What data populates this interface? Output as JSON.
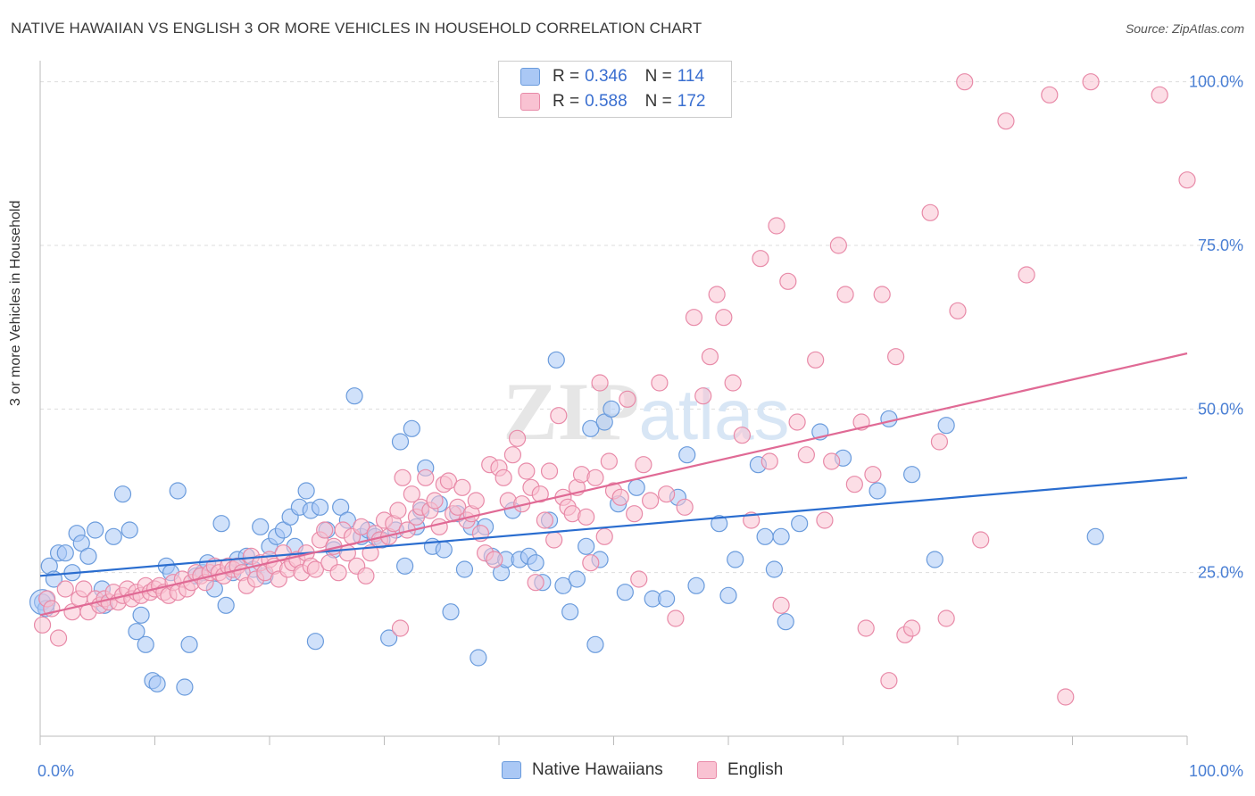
{
  "header": {
    "title": "NATIVE HAWAIIAN VS ENGLISH 3 OR MORE VEHICLES IN HOUSEHOLD CORRELATION CHART",
    "source": "Source: ZipAtlas.com"
  },
  "legend": {
    "items": [
      {
        "r_label": "R =",
        "r_value": "0.346",
        "n_label": "N =",
        "n_value": "114",
        "color": "#aac8f5",
        "border": "#6a9bdc"
      },
      {
        "r_label": "R =",
        "r_value": "0.588",
        "n_label": "N =",
        "n_value": "172",
        "color": "#f9c2d2",
        "border": "#e88aa8"
      }
    ]
  },
  "bottom_legend": {
    "items": [
      {
        "label": "Native Hawaiians",
        "color": "#aac8f5",
        "border": "#6a9bdc"
      },
      {
        "label": "English",
        "color": "#f9c2d2",
        "border": "#e88aa8"
      }
    ]
  },
  "chart_data": {
    "type": "scatter",
    "title": "NATIVE HAWAIIAN VS ENGLISH 3 OR MORE VEHICLES IN HOUSEHOLD CORRELATION CHART",
    "xlabel": "",
    "ylabel": "3 or more Vehicles in Household",
    "xlim": [
      0,
      100
    ],
    "ylim": [
      0,
      105
    ],
    "x_tick_labels": [
      "0.0%",
      "100.0%"
    ],
    "y_tick_labels": [
      "25.0%",
      "50.0%",
      "75.0%",
      "100.0%"
    ],
    "y_ticks": [
      25,
      50,
      75,
      100
    ],
    "grid": true,
    "legend_position": "top-center",
    "watermark": "ZIPatlas",
    "series": [
      {
        "name": "Native Hawaiians",
        "color": "#6a9bdc",
        "fill": "#aac8f5",
        "r": 0.346,
        "n": 114,
        "trend": {
          "x": [
            0,
            100
          ],
          "y": [
            24.5,
            39.5
          ],
          "color": "#2a6dcf"
        },
        "points": [
          [
            0.2,
            20.5
          ],
          [
            0.5,
            19.5
          ],
          [
            0.8,
            26
          ],
          [
            1.2,
            24
          ],
          [
            1.6,
            28
          ],
          [
            2.2,
            28
          ],
          [
            2.8,
            25
          ],
          [
            3.2,
            31
          ],
          [
            3.6,
            29.5
          ],
          [
            4.2,
            27.5
          ],
          [
            4.8,
            31.5
          ],
          [
            5.4,
            22.5
          ],
          [
            5.6,
            20
          ],
          [
            6.4,
            30.5
          ],
          [
            7.2,
            37
          ],
          [
            7.8,
            31.5
          ],
          [
            8.4,
            16
          ],
          [
            8.8,
            18.5
          ],
          [
            9.2,
            14
          ],
          [
            9.8,
            8.5
          ],
          [
            10.2,
            8
          ],
          [
            11.0,
            26
          ],
          [
            11.4,
            25
          ],
          [
            12.0,
            37.5
          ],
          [
            12.6,
            7.5
          ],
          [
            13.0,
            14
          ],
          [
            13.6,
            24.5
          ],
          [
            14.2,
            25
          ],
          [
            14.6,
            26.5
          ],
          [
            15.2,
            22.5
          ],
          [
            15.8,
            32.5
          ],
          [
            16.2,
            20
          ],
          [
            16.8,
            25
          ],
          [
            17.2,
            27
          ],
          [
            18.0,
            27.5
          ],
          [
            18.6,
            25.5
          ],
          [
            19.2,
            32
          ],
          [
            19.6,
            24.5
          ],
          [
            20.0,
            29
          ],
          [
            20.6,
            30.5
          ],
          [
            21.2,
            31.5
          ],
          [
            21.8,
            33.5
          ],
          [
            22.2,
            29
          ],
          [
            22.6,
            35
          ],
          [
            23.2,
            37.5
          ],
          [
            23.6,
            34.5
          ],
          [
            24.0,
            14.5
          ],
          [
            24.4,
            35
          ],
          [
            25.0,
            31.5
          ],
          [
            25.6,
            28.5
          ],
          [
            26.2,
            35
          ],
          [
            26.8,
            33
          ],
          [
            27.4,
            52
          ],
          [
            28.0,
            30.5
          ],
          [
            28.6,
            31.5
          ],
          [
            29.2,
            30.5
          ],
          [
            29.8,
            30
          ],
          [
            30.4,
            15
          ],
          [
            31.0,
            31.5
          ],
          [
            31.4,
            45
          ],
          [
            31.8,
            26
          ],
          [
            32.4,
            47
          ],
          [
            32.8,
            32
          ],
          [
            33.2,
            34.5
          ],
          [
            33.6,
            41
          ],
          [
            34.2,
            29
          ],
          [
            34.8,
            35.5
          ],
          [
            35.2,
            28.5
          ],
          [
            35.8,
            19
          ],
          [
            36.4,
            34
          ],
          [
            37.0,
            25.5
          ],
          [
            37.6,
            32
          ],
          [
            38.2,
            12
          ],
          [
            38.8,
            32
          ],
          [
            39.4,
            27.5
          ],
          [
            40.2,
            25
          ],
          [
            40.6,
            27
          ],
          [
            41.2,
            34.5
          ],
          [
            41.8,
            27
          ],
          [
            42.6,
            27.5
          ],
          [
            43.2,
            26.5
          ],
          [
            43.8,
            23.5
          ],
          [
            44.4,
            33
          ],
          [
            45.0,
            57.5
          ],
          [
            45.6,
            23
          ],
          [
            46.2,
            19
          ],
          [
            46.8,
            24
          ],
          [
            47.6,
            29
          ],
          [
            48.0,
            47
          ],
          [
            48.4,
            14
          ],
          [
            48.8,
            27
          ],
          [
            49.2,
            48
          ],
          [
            49.8,
            50
          ],
          [
            50.4,
            35.5
          ],
          [
            51.0,
            22
          ],
          [
            52.0,
            38
          ],
          [
            53.4,
            21
          ],
          [
            54.6,
            21
          ],
          [
            55.6,
            36.5
          ],
          [
            56.4,
            43
          ],
          [
            57.2,
            23
          ],
          [
            59.2,
            32.5
          ],
          [
            60.0,
            21.5
          ],
          [
            60.6,
            27
          ],
          [
            62.6,
            41.5
          ],
          [
            63.2,
            30.5
          ],
          [
            64.0,
            25.5
          ],
          [
            64.6,
            30.5
          ],
          [
            65.0,
            17.5
          ],
          [
            66.2,
            32.5
          ],
          [
            68.0,
            46.5
          ],
          [
            70.0,
            42.5
          ],
          [
            73.0,
            37.5
          ],
          [
            74.0,
            48.5
          ],
          [
            76.0,
            40
          ],
          [
            78.0,
            27
          ],
          [
            79.0,
            47.5
          ],
          [
            92.0,
            30.5
          ]
        ]
      },
      {
        "name": "English",
        "color": "#e88aa8",
        "fill": "#f9c2d2",
        "r": 0.588,
        "n": 172,
        "trend": {
          "x": [
            0,
            100
          ],
          "y": [
            18.5,
            58.5
          ],
          "color": "#e06a95"
        },
        "points": [
          [
            0.2,
            17
          ],
          [
            0.6,
            21
          ],
          [
            1.0,
            19.5
          ],
          [
            1.6,
            15
          ],
          [
            2.2,
            22.5
          ],
          [
            2.8,
            19
          ],
          [
            3.4,
            21
          ],
          [
            3.8,
            22.5
          ],
          [
            4.2,
            19
          ],
          [
            4.8,
            21
          ],
          [
            5.2,
            20
          ],
          [
            5.6,
            21
          ],
          [
            6.0,
            20.5
          ],
          [
            6.4,
            22
          ],
          [
            6.8,
            20.5
          ],
          [
            7.2,
            21.5
          ],
          [
            7.6,
            22.5
          ],
          [
            8.0,
            21
          ],
          [
            8.4,
            22
          ],
          [
            8.8,
            21.5
          ],
          [
            9.2,
            23
          ],
          [
            9.6,
            22
          ],
          [
            10.0,
            22.5
          ],
          [
            10.4,
            23
          ],
          [
            10.8,
            22
          ],
          [
            11.2,
            21.5
          ],
          [
            11.6,
            23.5
          ],
          [
            12.0,
            22
          ],
          [
            12.4,
            24
          ],
          [
            12.8,
            22.5
          ],
          [
            13.2,
            23.5
          ],
          [
            13.6,
            25
          ],
          [
            14.0,
            24.5
          ],
          [
            14.4,
            23.5
          ],
          [
            14.8,
            25
          ],
          [
            15.2,
            26
          ],
          [
            15.6,
            25
          ],
          [
            16.0,
            24.5
          ],
          [
            16.4,
            26
          ],
          [
            16.8,
            25.5
          ],
          [
            17.2,
            26
          ],
          [
            17.6,
            25
          ],
          [
            18.0,
            23
          ],
          [
            18.4,
            27.5
          ],
          [
            18.8,
            24
          ],
          [
            19.2,
            26.5
          ],
          [
            19.6,
            25
          ],
          [
            20.0,
            27
          ],
          [
            20.4,
            26
          ],
          [
            20.8,
            24
          ],
          [
            21.2,
            28
          ],
          [
            21.6,
            25.5
          ],
          [
            22.0,
            26.5
          ],
          [
            22.4,
            27
          ],
          [
            22.8,
            25
          ],
          [
            23.2,
            28
          ],
          [
            23.6,
            26
          ],
          [
            24.0,
            25.5
          ],
          [
            24.4,
            30
          ],
          [
            24.8,
            31.5
          ],
          [
            25.2,
            26.5
          ],
          [
            25.6,
            29
          ],
          [
            26.0,
            25
          ],
          [
            26.4,
            31.5
          ],
          [
            26.8,
            28
          ],
          [
            27.2,
            30.5
          ],
          [
            27.6,
            26
          ],
          [
            28.0,
            32
          ],
          [
            28.4,
            24.5
          ],
          [
            28.8,
            28
          ],
          [
            29.2,
            31
          ],
          [
            29.6,
            30
          ],
          [
            30.0,
            33
          ],
          [
            30.4,
            30.5
          ],
          [
            30.8,
            32.5
          ],
          [
            31.2,
            34.5
          ],
          [
            31.6,
            39.5
          ],
          [
            32.0,
            31.5
          ],
          [
            32.4,
            37
          ],
          [
            32.8,
            33.5
          ],
          [
            33.2,
            35
          ],
          [
            33.6,
            39.5
          ],
          [
            34.0,
            34.5
          ],
          [
            34.4,
            36
          ],
          [
            34.8,
            32
          ],
          [
            35.2,
            38.5
          ],
          [
            35.6,
            39
          ],
          [
            36.0,
            34
          ],
          [
            36.4,
            35
          ],
          [
            36.8,
            38
          ],
          [
            37.2,
            33
          ],
          [
            37.6,
            34
          ],
          [
            38.0,
            36
          ],
          [
            38.4,
            31
          ],
          [
            38.8,
            28
          ],
          [
            39.2,
            41.5
          ],
          [
            39.6,
            27
          ],
          [
            40.0,
            41
          ],
          [
            40.4,
            39.5
          ],
          [
            40.8,
            36
          ],
          [
            41.2,
            43
          ],
          [
            41.6,
            45.5
          ],
          [
            42.0,
            35.5
          ],
          [
            42.4,
            40.5
          ],
          [
            42.8,
            38
          ],
          [
            43.2,
            23.5
          ],
          [
            43.6,
            37
          ],
          [
            44.0,
            33
          ],
          [
            44.4,
            40.5
          ],
          [
            44.8,
            30
          ],
          [
            45.2,
            49
          ],
          [
            45.6,
            36.5
          ],
          [
            46.0,
            35
          ],
          [
            46.4,
            34
          ],
          [
            46.8,
            38
          ],
          [
            47.2,
            40
          ],
          [
            47.6,
            33.5
          ],
          [
            48.0,
            26.5
          ],
          [
            48.4,
            39.5
          ],
          [
            48.8,
            54
          ],
          [
            49.2,
            30.5
          ],
          [
            49.6,
            42
          ],
          [
            50.0,
            37.5
          ],
          [
            50.6,
            36.5
          ],
          [
            51.2,
            51.5
          ],
          [
            51.8,
            34
          ],
          [
            52.2,
            24
          ],
          [
            52.6,
            41.5
          ],
          [
            53.2,
            36
          ],
          [
            54.0,
            54
          ],
          [
            54.6,
            37
          ],
          [
            55.4,
            18
          ],
          [
            56.2,
            35
          ],
          [
            57.0,
            64
          ],
          [
            57.8,
            52
          ],
          [
            58.4,
            58
          ],
          [
            59.0,
            67.5
          ],
          [
            59.6,
            64
          ],
          [
            60.4,
            54
          ],
          [
            61.2,
            46
          ],
          [
            62.0,
            33
          ],
          [
            62.8,
            73
          ],
          [
            63.6,
            42
          ],
          [
            64.2,
            78
          ],
          [
            64.6,
            20
          ],
          [
            65.2,
            69.5
          ],
          [
            66.0,
            48
          ],
          [
            66.8,
            43
          ],
          [
            67.6,
            57.5
          ],
          [
            68.4,
            33
          ],
          [
            69.0,
            42
          ],
          [
            69.6,
            75
          ],
          [
            70.2,
            67.5
          ],
          [
            71.0,
            38.5
          ],
          [
            71.6,
            48
          ],
          [
            72.0,
            16.5
          ],
          [
            72.6,
            40
          ],
          [
            73.4,
            67.5
          ],
          [
            74.0,
            8.5
          ],
          [
            74.6,
            58
          ],
          [
            75.4,
            15.5
          ],
          [
            76.0,
            16.5
          ],
          [
            77.6,
            80
          ],
          [
            78.4,
            45
          ],
          [
            79.0,
            18
          ],
          [
            80.0,
            65
          ],
          [
            80.6,
            100
          ],
          [
            82.0,
            30
          ],
          [
            84.2,
            94
          ],
          [
            86.0,
            70.5
          ],
          [
            88.0,
            98
          ],
          [
            89.4,
            6
          ],
          [
            91.6,
            100
          ],
          [
            100.0,
            85
          ],
          [
            97.6,
            98
          ],
          [
            31.4,
            16.5
          ]
        ]
      }
    ]
  }
}
